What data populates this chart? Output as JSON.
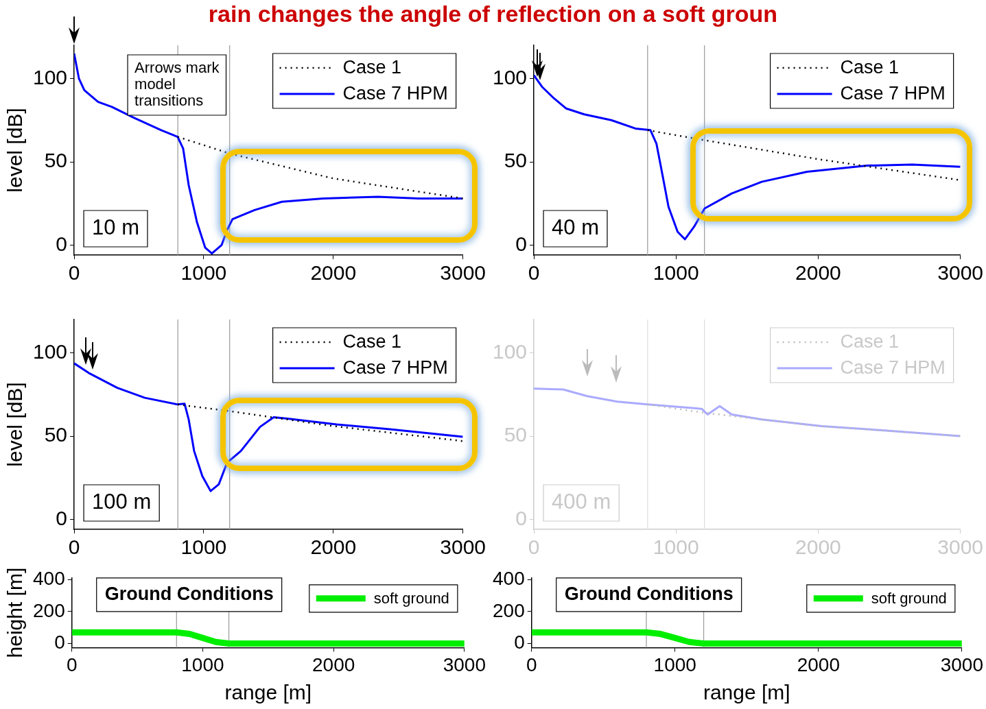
{
  "chart_data": [
    {
      "type": "line",
      "title": "rain changes the angle of reflection on a soft groun",
      "ylabel": "level [dB]",
      "xlim": [
        0,
        3000
      ],
      "xticks": [
        0,
        1000,
        2000,
        3000
      ],
      "ylim": [
        -6,
        120
      ],
      "yticks": [
        0,
        50,
        100
      ],
      "grid": false,
      "legend": "top right",
      "marker": "none",
      "annotations": [
        "10 m",
        "Arrows mark model transitions"
      ],
      "ref_lines": [
        {
          "axis": "x",
          "value": 800,
          "color": "#999999"
        },
        {
          "axis": "x",
          "value": 1200,
          "color": "#999999"
        }
      ],
      "series": [
        {
          "name": "Case 1",
          "color": "#000000",
          "line_style": "dotted",
          "x": [
            800,
            1200,
            2000,
            3000
          ],
          "values": [
            65,
            55,
            40,
            28
          ]
        },
        {
          "name": "Case 7 HPM",
          "color": "#0000ff",
          "line_style": "solid",
          "x": [
            0,
            37,
            79,
            185,
            291,
            460,
            672,
            799,
            841,
            884,
            947,
            1011,
            1063,
            1138,
            1180,
            1222,
            1392,
            1603,
            1921,
            2344,
            2661,
            3000
          ],
          "values": [
            115,
            100,
            93,
            86,
            83,
            76.5,
            69,
            65,
            58,
            36,
            14,
            -1.5,
            -5,
            0,
            9,
            15.6,
            21,
            26,
            28,
            29,
            28,
            28
          ]
        }
      ]
    },
    {
      "type": "line",
      "xlim": [
        0,
        3000
      ],
      "xticks": [
        0,
        1000,
        2000,
        3000
      ],
      "ylim": [
        -6,
        120
      ],
      "yticks": [
        0,
        50,
        100
      ],
      "grid": false,
      "legend": "top right",
      "marker": "none",
      "annotations": [
        "40 m"
      ],
      "ref_lines": [
        {
          "axis": "x",
          "value": 800,
          "color": "#999999"
        },
        {
          "axis": "x",
          "value": 1200,
          "color": "#999999"
        }
      ],
      "series": [
        {
          "name": "Case 1",
          "color": "#000000",
          "line_style": "dotted",
          "x": [
            800,
            1200,
            2000,
            3000
          ],
          "values": [
            69,
            63,
            51.6,
            39
          ]
        },
        {
          "name": "Case 7 HPM",
          "color": "#0000ff",
          "line_style": "solid",
          "x": [
            0,
            58,
            143,
            228,
            354,
            545,
            714,
            820,
            862,
            905,
            947,
            1011,
            1063,
            1127,
            1201,
            1392,
            1603,
            1921,
            2344,
            2661,
            3000
          ],
          "values": [
            102,
            95,
            88,
            82,
            78.5,
            75,
            70,
            69,
            61,
            42,
            23,
            8,
            3.5,
            11,
            22,
            31,
            38,
            44,
            47.7,
            48.4,
            47
          ]
        }
      ]
    },
    {
      "type": "line",
      "ylabel": "level [dB]",
      "xlim": [
        0,
        3000
      ],
      "xticks": [
        0,
        1000,
        2000,
        3000
      ],
      "ylim": [
        -6,
        120
      ],
      "yticks": [
        0,
        50,
        100
      ],
      "grid": false,
      "legend": "top right",
      "marker": "none",
      "annotations": [
        "100 m"
      ],
      "ref_lines": [
        {
          "axis": "x",
          "value": 800,
          "color": "#999999"
        },
        {
          "axis": "x",
          "value": 1200,
          "color": "#999999"
        }
      ],
      "series": [
        {
          "name": "Case 1",
          "color": "#000000",
          "line_style": "dotted",
          "x": [
            800,
            1200,
            2000,
            3000
          ],
          "values": [
            69,
            65,
            56,
            47
          ]
        },
        {
          "name": "Case 7 HPM",
          "color": "#0000ff",
          "line_style": "solid",
          "x": [
            0,
            122,
            333,
            545,
            799,
            852,
            884,
            926,
            989,
            1053,
            1116,
            1180,
            1286,
            1434,
            1540,
            1646,
            2026,
            2450,
            3000
          ],
          "values": [
            93.7,
            87.5,
            79,
            73,
            69,
            69.5,
            60,
            41,
            26,
            17,
            21,
            34,
            41,
            55.5,
            61.3,
            60.5,
            57,
            54,
            49.6
          ]
        }
      ]
    },
    {
      "type": "line",
      "xlim": [
        0,
        3000
      ],
      "xticks": [
        0,
        1000,
        2000,
        3000
      ],
      "ylim": [
        -6,
        120
      ],
      "yticks": [
        0,
        50,
        100
      ],
      "grid": false,
      "legend": "top right",
      "marker": "none",
      "annotations": [
        "400 m"
      ],
      "ref_lines": [
        {
          "axis": "x",
          "value": 800,
          "color": "#dddddd"
        },
        {
          "axis": "x",
          "value": 1200,
          "color": "#dddddd"
        }
      ],
      "series": [
        {
          "name": "Case 1",
          "color": "#bbbbbb",
          "line_style": "dotted",
          "x": [
            800,
            1200,
            2000,
            3000
          ],
          "values": [
            69,
            64,
            56,
            50
          ]
        },
        {
          "name": "Case 7 HPM",
          "color": "#aaaaff",
          "line_style": "solid",
          "x": [
            0,
            206,
            376,
            587,
            799,
            1180,
            1222,
            1307,
            1392,
            1603,
            2026,
            2450,
            3000
          ],
          "values": [
            78.5,
            78,
            74,
            70.7,
            69,
            66.4,
            63,
            68,
            63,
            60,
            56,
            53.5,
            50
          ]
        }
      ]
    },
    {
      "type": "line",
      "xlabel": "range [m]",
      "ylabel": "height [m]",
      "xlim": [
        0,
        3000
      ],
      "xticks": [
        0,
        1000,
        2000,
        3000
      ],
      "ylim": [
        -25,
        410
      ],
      "yticks": [
        0,
        200,
        400
      ],
      "grid": false,
      "legend": "top right",
      "marker": "none",
      "annotations": [
        "Ground Conditions"
      ],
      "ref_lines": [
        {
          "axis": "x",
          "value": 800,
          "color": "#999999"
        },
        {
          "axis": "x",
          "value": 1200,
          "color": "#999999"
        }
      ],
      "series": [
        {
          "name": "soft ground",
          "color": "#00ee00",
          "line_style": "solid",
          "x": [
            0,
            800,
            900,
            1000,
            1100,
            1200,
            3000
          ],
          "values": [
            70,
            70,
            60,
            35,
            10,
            0,
            0
          ]
        }
      ]
    },
    {
      "type": "line",
      "xlabel": "range [m]",
      "xlim": [
        0,
        3000
      ],
      "xticks": [
        0,
        1000,
        2000,
        3000
      ],
      "ylim": [
        -25,
        410
      ],
      "yticks": [
        0,
        200,
        400
      ],
      "grid": false,
      "legend": "top right",
      "marker": "none",
      "annotations": [
        "Ground Conditions"
      ],
      "ref_lines": [
        {
          "axis": "x",
          "value": 800,
          "color": "#999999"
        },
        {
          "axis": "x",
          "value": 1200,
          "color": "#999999"
        }
      ],
      "series": [
        {
          "name": "soft ground",
          "color": "#00ee00",
          "line_style": "solid",
          "x": [
            0,
            800,
            900,
            1000,
            1100,
            1200,
            3000
          ],
          "values": [
            70,
            70,
            60,
            35,
            10,
            0,
            0
          ]
        }
      ]
    }
  ]
}
